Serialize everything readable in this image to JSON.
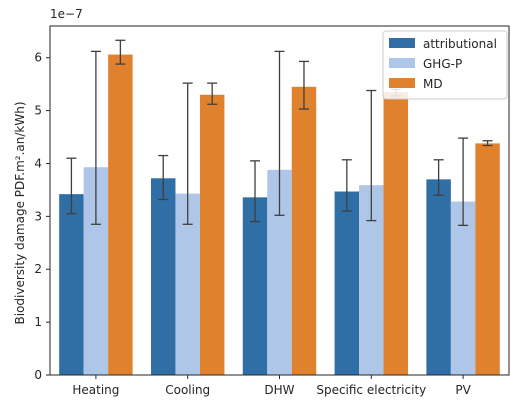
{
  "chart_data": {
    "type": "bar",
    "title": "",
    "xlabel": "",
    "ylabel": "Biodiversity damage PDF.m².an/kWh)",
    "offset_text": "1e−7",
    "ylim": [
      0,
      6.6
    ],
    "yticks": [
      0,
      1,
      2,
      3,
      4,
      5,
      6
    ],
    "categories": [
      "Heating",
      "Cooling",
      "DHW",
      "Specific electricity",
      "PV"
    ],
    "legend_position": "top-right",
    "series": [
      {
        "name": "attributional",
        "color": "#2f6fa6",
        "values": [
          3.42,
          3.72,
          3.36,
          3.47,
          3.7
        ],
        "err_low": [
          3.05,
          3.32,
          2.9,
          3.1,
          3.4
        ],
        "err_high": [
          4.1,
          4.15,
          4.05,
          4.07,
          4.07
        ]
      },
      {
        "name": "GHG-P",
        "color": "#aec7e8",
        "values": [
          3.93,
          3.43,
          3.88,
          3.59,
          3.28
        ],
        "err_low": [
          2.85,
          2.85,
          3.02,
          2.92,
          2.83
        ],
        "err_high": [
          6.12,
          5.52,
          6.12,
          5.38,
          4.48
        ]
      },
      {
        "name": "MD",
        "color": "#e0812d",
        "values": [
          6.06,
          5.3,
          5.45,
          5.35,
          4.38
        ],
        "err_low": [
          5.88,
          5.12,
          5.03,
          5.28,
          4.34
        ],
        "err_high": [
          6.33,
          5.52,
          5.93,
          5.4,
          4.43
        ]
      }
    ]
  }
}
